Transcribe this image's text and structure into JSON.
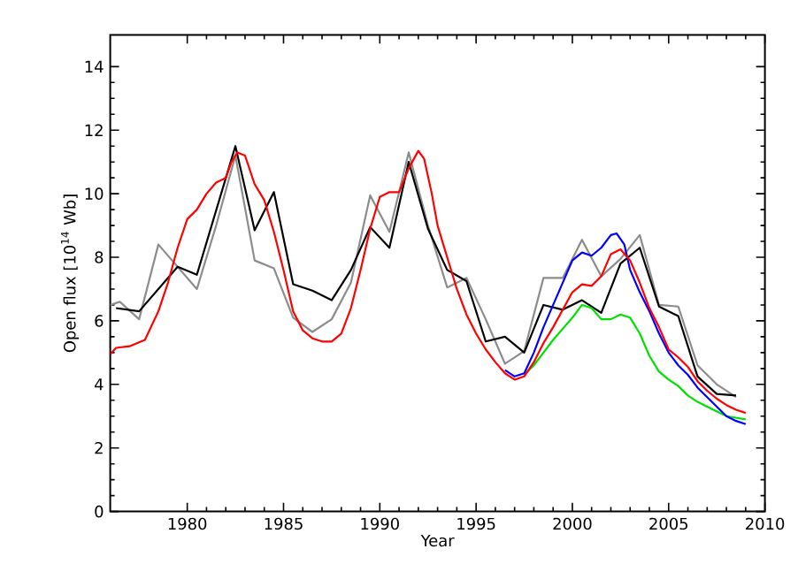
{
  "chart_data": {
    "type": "line",
    "xlabel": "Year",
    "ylabel": "Open flux [10$^{14}$ Wb]",
    "xlim": [
      1976,
      2010
    ],
    "ylim": [
      0,
      15
    ],
    "xticks": [
      1980,
      1985,
      1990,
      1995,
      2000,
      2005,
      2010
    ],
    "yticks": [
      0,
      2,
      4,
      6,
      8,
      10,
      12,
      14
    ],
    "marker": "none",
    "line_style": "solid",
    "series": [
      {
        "color": "#8c8c8c",
        "x": [
          1976,
          1976.5,
          1977.5,
          1978.5,
          1979.5,
          1980.5,
          1981.5,
          1982.5,
          1983.5,
          1984.5,
          1985.5,
          1986.5,
          1987.5,
          1988.5,
          1989.5,
          1990.5,
          1991.5,
          1992.5,
          1993.5,
          1994.5,
          1995.5,
          1996.5,
          1997.5,
          1998.5,
          1999.5,
          2000.5,
          2001.5,
          2002.5,
          2003.5,
          2004.5,
          2005.5,
          2006.5,
          2007.5,
          2008.5
        ],
        "values": [
          6.5,
          6.6,
          6.05,
          8.4,
          7.7,
          7.0,
          9.0,
          11.2,
          7.9,
          7.65,
          6.1,
          5.65,
          6.05,
          7.2,
          9.95,
          8.8,
          11.3,
          9.0,
          7.05,
          7.35,
          6.05,
          4.65,
          5.05,
          7.35,
          7.35,
          8.55,
          7.4,
          7.95,
          8.7,
          6.5,
          6.45,
          4.6,
          4.0,
          3.6
        ]
      },
      {
        "color": "#000000",
        "x": [
          1976.3,
          1977.5,
          1979.5,
          1980.5,
          1982.5,
          1983.5,
          1984.5,
          1985.5,
          1986.5,
          1987.5,
          1988.5,
          1989.5,
          1990.5,
          1991.5,
          1992.5,
          1993.5,
          1994.5,
          1995.5,
          1996.5,
          1997.5,
          1998.5,
          1999.5,
          2000.5,
          2001.5,
          2002.5,
          2003.5,
          2004.5,
          2005.5,
          2006.5,
          2007.5,
          2008.5
        ],
        "values": [
          6.4,
          6.3,
          7.7,
          7.45,
          11.5,
          8.85,
          10.05,
          7.15,
          6.95,
          6.65,
          7.6,
          8.95,
          8.3,
          11.0,
          8.9,
          7.6,
          7.25,
          5.35,
          5.5,
          5.0,
          6.5,
          6.35,
          6.65,
          6.25,
          7.8,
          8.3,
          6.45,
          6.15,
          4.25,
          3.7,
          3.65
        ]
      },
      {
        "color": "#00e000",
        "x": [
          1997.5,
          1998,
          1998.5,
          1999,
          1999.5,
          2000,
          2000.5,
          2001,
          2001.5,
          2002,
          2002.5,
          2003,
          2003.5,
          2004,
          2004.5,
          2005,
          2005.5,
          2006,
          2006.5,
          2007,
          2007.5,
          2008,
          2008.5,
          2009
        ],
        "values": [
          4.3,
          4.6,
          5.0,
          5.4,
          5.75,
          6.1,
          6.5,
          6.4,
          6.05,
          6.05,
          6.2,
          6.1,
          5.6,
          4.9,
          4.4,
          4.15,
          3.95,
          3.65,
          3.45,
          3.3,
          3.15,
          3.0,
          2.95,
          2.9
        ]
      },
      {
        "color": "#0000ff",
        "x": [
          1996.5,
          1997,
          1997.5,
          1998,
          1998.5,
          1999,
          1999.5,
          2000,
          2000.5,
          2001,
          2001.5,
          2002,
          2002.3,
          2002.7,
          2003,
          2003.5,
          2004,
          2004.5,
          2005,
          2005.5,
          2006,
          2006.5,
          2007,
          2007.5,
          2008,
          2008.5,
          2009
        ],
        "values": [
          4.45,
          4.25,
          4.35,
          5.0,
          5.8,
          6.5,
          7.2,
          7.9,
          8.15,
          8.05,
          8.3,
          8.7,
          8.75,
          8.4,
          7.6,
          6.9,
          6.3,
          5.6,
          5.0,
          4.6,
          4.3,
          3.9,
          3.6,
          3.3,
          3.0,
          2.85,
          2.75
        ]
      },
      {
        "color": "#ff0000",
        "x": [
          1976,
          1976.3,
          1977,
          1977.8,
          1978.5,
          1979,
          1979.5,
          1980,
          1980.5,
          1981,
          1981.5,
          1982,
          1982.3,
          1982.6,
          1983,
          1983.5,
          1984,
          1984.5,
          1985,
          1985.5,
          1986,
          1986.5,
          1987,
          1987.5,
          1988,
          1988.5,
          1989,
          1989.5,
          1990,
          1990.5,
          1991,
          1991.5,
          1992,
          1992.3,
          1992.7,
          1993,
          1993.5,
          1994,
          1994.5,
          1995,
          1995.5,
          1996,
          1996.5,
          1997,
          1997.5,
          1998,
          1998.5,
          1999,
          1999.5,
          2000,
          2000.5,
          2001,
          2001.5,
          2002,
          2002.5,
          2003,
          2003.5,
          2004,
          2004.5,
          2005,
          2005.5,
          2006,
          2006.5,
          2007,
          2007.5,
          2008,
          2008.5,
          2009
        ],
        "values": [
          4.95,
          5.15,
          5.2,
          5.4,
          6.3,
          7.2,
          8.3,
          9.2,
          9.5,
          10.0,
          10.35,
          10.5,
          11.0,
          11.3,
          11.2,
          10.3,
          9.8,
          8.8,
          7.6,
          6.3,
          5.7,
          5.45,
          5.35,
          5.35,
          5.6,
          6.4,
          7.6,
          8.9,
          9.9,
          10.05,
          10.05,
          10.8,
          11.35,
          11.1,
          10.0,
          9.0,
          8.0,
          7.0,
          6.2,
          5.6,
          5.1,
          4.7,
          4.35,
          4.15,
          4.25,
          4.7,
          5.3,
          5.8,
          6.35,
          6.9,
          7.15,
          7.1,
          7.4,
          8.1,
          8.25,
          7.9,
          7.2,
          6.4,
          5.8,
          5.1,
          4.85,
          4.55,
          4.1,
          3.8,
          3.55,
          3.35,
          3.2,
          3.1
        ]
      }
    ]
  }
}
